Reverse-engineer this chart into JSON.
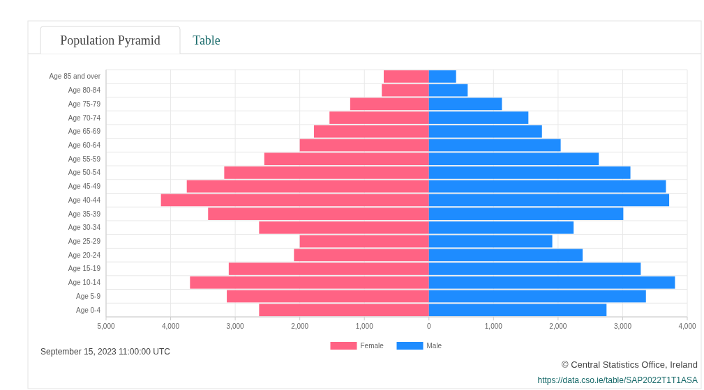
{
  "chart_data": {
    "type": "bar",
    "orientation": "horizontal",
    "stacked": true,
    "title": "Population Pyramid",
    "categories": [
      "Age 85 and over",
      "Age 80-84",
      "Age 75-79",
      "Age 70-74",
      "Age 65-69",
      "Age 60-64",
      "Age 55-59",
      "Age 50-54",
      "Age 45-49",
      "Age 40-44",
      "Age 35-39",
      "Age 30-34",
      "Age 25-29",
      "Age 20-24",
      "Age 15-19",
      "Age 10-14",
      "Age 5-9",
      "Age 0-4"
    ],
    "series": [
      {
        "name": "Female",
        "color": "#ff6384",
        "values": [
          -700,
          -730,
          -1220,
          -1540,
          -1780,
          -2000,
          -2550,
          -3170,
          -3750,
          -4150,
          -3420,
          -2630,
          -2000,
          -2090,
          -3100,
          -3700,
          -3130,
          -2630
        ]
      },
      {
        "name": "Male",
        "color": "#1e8cff",
        "values": [
          420,
          600,
          1130,
          1540,
          1750,
          2040,
          2630,
          3120,
          3670,
          3720,
          3010,
          2240,
          1910,
          2380,
          3280,
          3810,
          3360,
          2750
        ]
      }
    ],
    "xlim": [
      -5000,
      4000
    ],
    "xticks": [
      {
        "value": -5000,
        "label": "5,000"
      },
      {
        "value": -4000,
        "label": "4,000"
      },
      {
        "value": -3000,
        "label": "3,000"
      },
      {
        "value": -2000,
        "label": "2,000"
      },
      {
        "value": -1000,
        "label": "1,000"
      },
      0,
      {
        "value": 1000,
        "label": "1,000"
      },
      {
        "value": 2000,
        "label": "2,000"
      },
      {
        "value": 3000,
        "label": "3,000"
      },
      {
        "value": 4000,
        "label": "4,000"
      }
    ],
    "grid": true,
    "legend": "bottom",
    "annotations": [
      "Table",
      "September 15, 2023 11:00:00 UTC",
      "© Central Statistics Office, Ireland",
      "https://data.cso.ie/table/SAP2022T1T1ASA"
    ]
  }
}
